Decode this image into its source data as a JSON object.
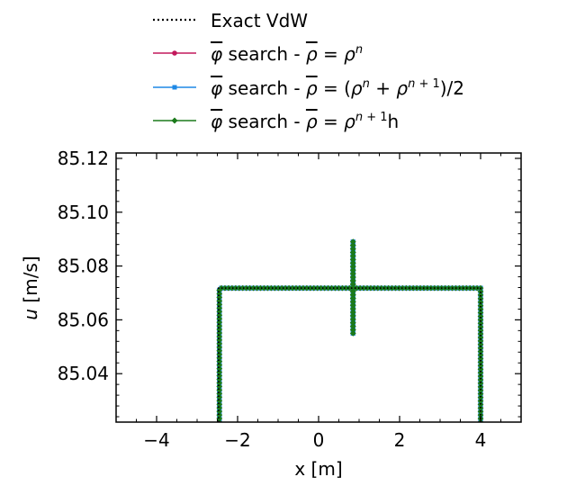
{
  "chart_data": {
    "type": "line",
    "xlabel": "x [m]",
    "ylabel_italic": "u",
    "ylabel_rest": " [m/s]",
    "xlim": [
      -5,
      5
    ],
    "ylim": [
      85.022,
      85.122
    ],
    "x_ticks": [
      -4,
      -2,
      0,
      2,
      4
    ],
    "x_tick_labels": [
      "−4",
      "−2",
      "0",
      "2",
      "4"
    ],
    "y_ticks": [
      85.04,
      85.06,
      85.08,
      85.1,
      85.12
    ],
    "y_tick_labels": [
      "85.04",
      "85.06",
      "85.08",
      "85.10",
      "85.12"
    ],
    "grid": false,
    "legend_position": "above-plot",
    "series": [
      {
        "name": "Exact VdW",
        "style": "dotted",
        "color": "#000000",
        "points": [
          [
            -2.47,
            85.022
          ],
          [
            -2.47,
            85.0718
          ],
          [
            4.0,
            85.0718
          ],
          [
            4.0,
            85.022
          ]
        ]
      },
      {
        "name": "search - = ρⁿ",
        "style": "solid-marker",
        "marker": "circle",
        "color": "#c2185b",
        "points": [
          [
            -2.45,
            85.022
          ],
          [
            -2.45,
            85.071
          ],
          [
            -2.4,
            85.0718
          ],
          [
            0.85,
            85.0718
          ],
          [
            0.85,
            85.089
          ],
          [
            0.85,
            85.055
          ],
          [
            0.85,
            85.0718
          ],
          [
            4.0,
            85.0718
          ],
          [
            4.0,
            85.022
          ]
        ]
      },
      {
        "name": "search - = (ρⁿ + ρⁿ⁺¹)/2",
        "style": "solid-marker",
        "marker": "square",
        "color": "#1e88e5",
        "points": [
          [
            -2.45,
            85.022
          ],
          [
            -2.45,
            85.071
          ],
          [
            -2.4,
            85.0718
          ],
          [
            0.85,
            85.0718
          ],
          [
            0.85,
            85.089
          ],
          [
            0.85,
            85.055
          ],
          [
            0.85,
            85.0718
          ],
          [
            4.0,
            85.0718
          ],
          [
            4.0,
            85.022
          ]
        ]
      },
      {
        "name": "search - = ρⁿ⁺¹h",
        "style": "solid-marker",
        "marker": "diamond",
        "color": "#1b7a1b",
        "points": [
          [
            -2.45,
            85.022
          ],
          [
            -2.45,
            85.071
          ],
          [
            -2.4,
            85.0718
          ],
          [
            0.85,
            85.0718
          ],
          [
            0.85,
            85.089
          ],
          [
            0.85,
            85.055
          ],
          [
            0.85,
            85.0718
          ],
          [
            4.0,
            85.0718
          ],
          [
            4.0,
            85.022
          ]
        ]
      }
    ]
  },
  "legend": [
    {
      "label": "Exact VdW"
    },
    {
      "label": "φ̅ search - ρ̅ = ρⁿ"
    },
    {
      "label": "φ̅ search - ρ̅ = (ρⁿ + ρⁿ⁺¹)/2"
    },
    {
      "label": "φ̅ search - ρ̅ = ρⁿ⁺¹h"
    }
  ]
}
